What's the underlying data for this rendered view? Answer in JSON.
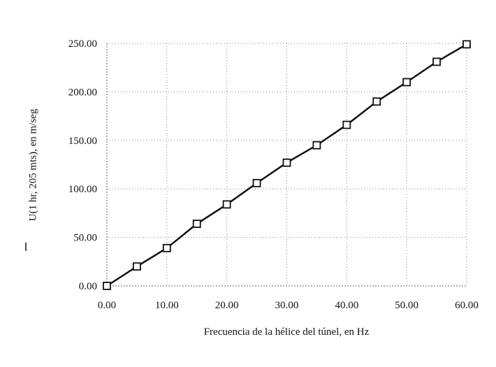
{
  "chart_data": {
    "type": "scatter",
    "x_label": "Frecuencia de la hélice del túnel, en Hz",
    "y_label": "U(1 hr, 205 mts), en m/seg",
    "x": [
      0,
      5,
      10,
      15,
      20,
      25,
      30,
      35,
      40,
      45,
      50,
      55,
      60
    ],
    "series": [
      {
        "color": "#111111",
        "values": [
          0,
          20,
          39,
          64,
          84,
          106,
          127,
          145,
          166,
          190,
          210,
          231,
          249
        ]
      }
    ],
    "xlim": [
      0,
      60
    ],
    "xticks": [
      {
        "value": 0,
        "label": "0.00"
      },
      {
        "value": 10,
        "label": "10.00"
      },
      {
        "value": 20,
        "label": "20.00"
      },
      {
        "value": 30,
        "label": "30.00"
      },
      {
        "value": 40,
        "label": "40.00"
      },
      {
        "value": 50,
        "label": "50.00"
      },
      {
        "value": 60,
        "label": "60.00"
      }
    ],
    "ylim": [
      0,
      250
    ],
    "yticks": [
      {
        "value": 0,
        "label": "0.00"
      },
      {
        "value": 50,
        "label": "50.00"
      },
      {
        "value": 100,
        "label": "100.00"
      },
      {
        "value": 150,
        "label": "150.00"
      },
      {
        "value": 200,
        "label": "200.00"
      },
      {
        "value": 250,
        "label": "250.00"
      }
    ],
    "grid": true
  }
}
